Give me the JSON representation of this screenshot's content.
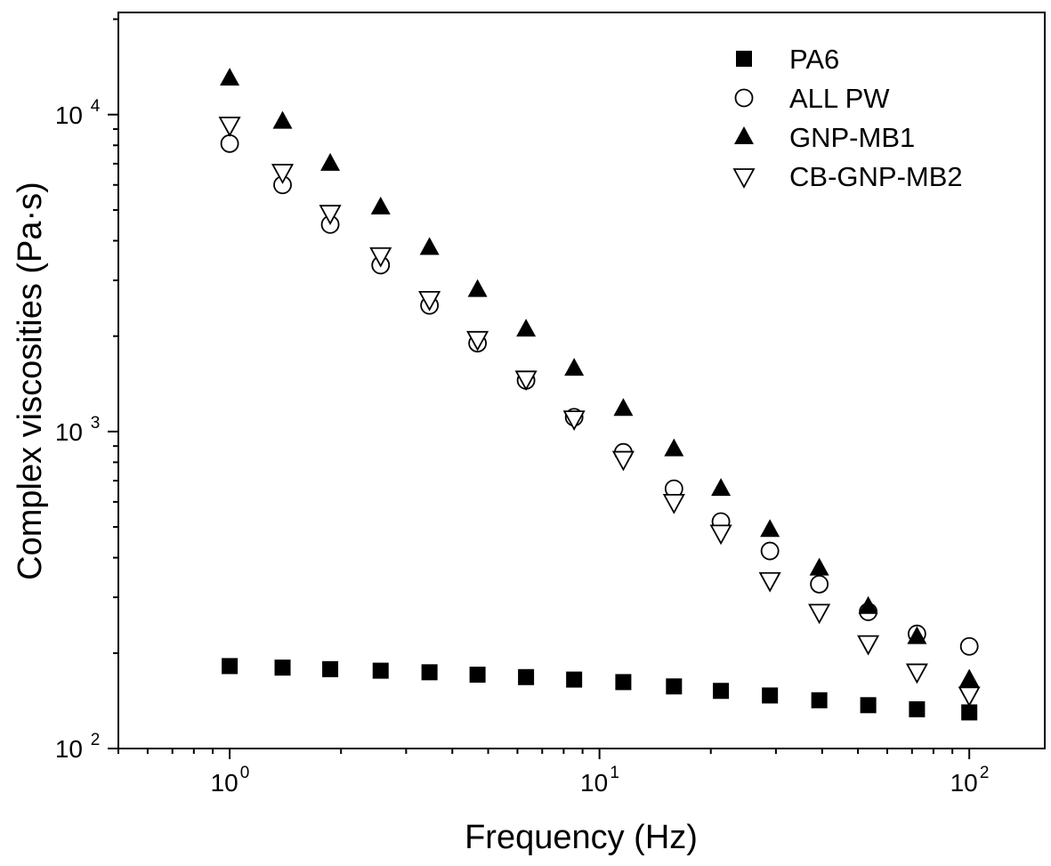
{
  "chart_data": {
    "type": "scatter",
    "xscale": "log",
    "yscale": "log",
    "xlim": [
      0.5,
      160
    ],
    "ylim": [
      100,
      21000
    ],
    "xlabel": "Frequency (Hz)",
    "ylabel": "Complex viscosities (Pa·s)",
    "grid": false,
    "legend_position": "top-right",
    "x_ticks": [
      {
        "value": 1,
        "base": "10",
        "exp": "0"
      },
      {
        "value": 10,
        "base": "10",
        "exp": "1"
      },
      {
        "value": 100,
        "base": "10",
        "exp": "2"
      }
    ],
    "y_ticks": [
      {
        "value": 100,
        "base": "10",
        "exp": "2"
      },
      {
        "value": 1000,
        "base": "10",
        "exp": "3"
      },
      {
        "value": 10000,
        "base": "10",
        "exp": "4"
      }
    ],
    "x": [
      1.0,
      1.39,
      1.87,
      2.56,
      3.47,
      4.68,
      6.33,
      8.54,
      11.6,
      15.9,
      21.3,
      28.9,
      39.3,
      53.3,
      72.2,
      100
    ],
    "series": [
      {
        "name": "PA6",
        "marker": "filled-square",
        "values": [
          182,
          180,
          178,
          176,
          174,
          171,
          168,
          165,
          162,
          157,
          152,
          147,
          142,
          137,
          133,
          130
        ]
      },
      {
        "name": "ALL PW",
        "marker": "open-circle",
        "values": [
          8100,
          6000,
          4500,
          3350,
          2500,
          1900,
          1450,
          1110,
          860,
          660,
          520,
          420,
          330,
          270,
          230,
          210
        ]
      },
      {
        "name": "GNP-MB1",
        "marker": "filled-triangle-up",
        "values": [
          13000,
          9500,
          7000,
          5100,
          3800,
          2800,
          2100,
          1580,
          1180,
          880,
          660,
          490,
          370,
          280,
          225,
          165
        ]
      },
      {
        "name": "CB-GNP-MB2",
        "marker": "open-triangle-down",
        "values": [
          9300,
          6600,
          4900,
          3600,
          2620,
          1960,
          1470,
          1100,
          820,
          600,
          480,
          340,
          270,
          215,
          175,
          148
        ]
      }
    ]
  }
}
